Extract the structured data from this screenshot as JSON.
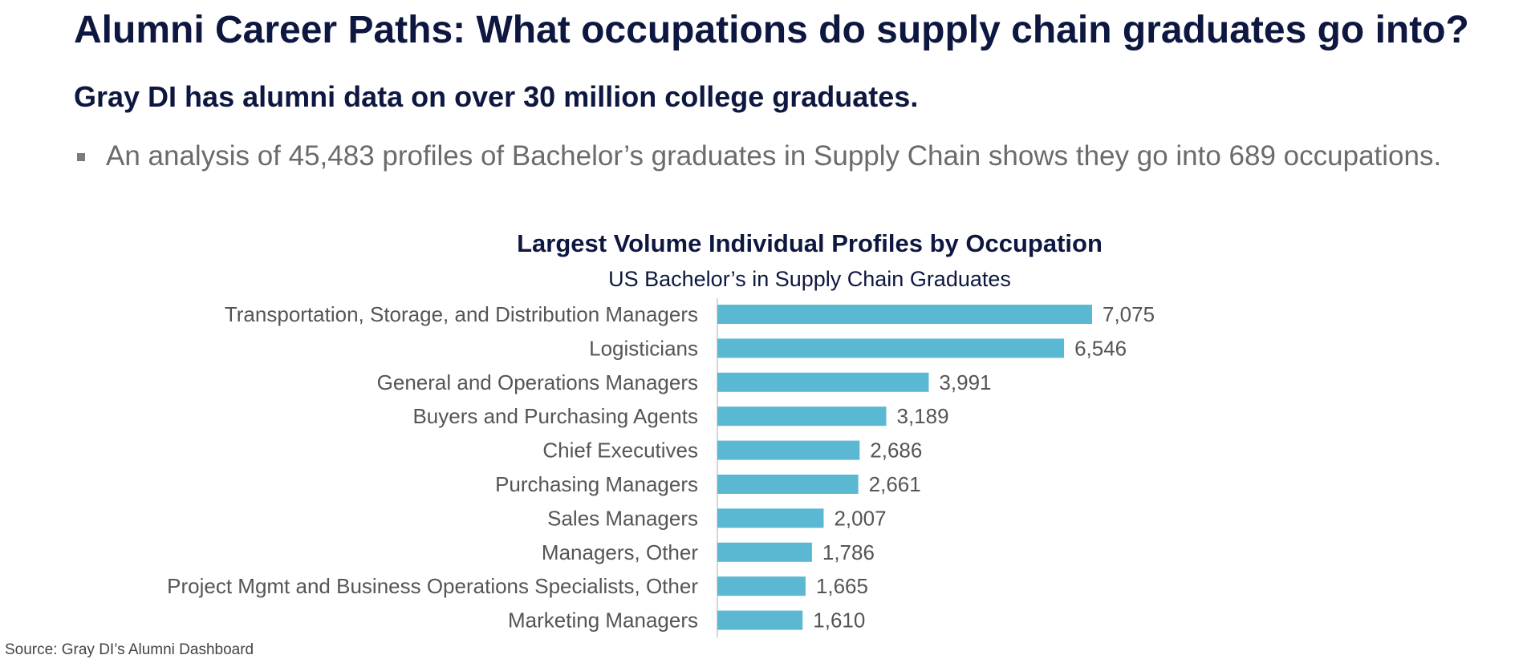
{
  "header": {
    "title": "Alumni Career Paths:  What occupations do supply chain graduates go into?",
    "subtitle": "Gray DI has alumni data on over 30 million college graduates.",
    "bullet": "An analysis of 45,483 profiles of Bachelor’s graduates in Supply Chain shows they go into 689 occupations."
  },
  "source": "Source:  Gray DI’s Alumni Dashboard",
  "colors": {
    "bar": "#5bb8d3",
    "title": "#0d1740",
    "label": "#555555"
  },
  "chart_data": {
    "type": "bar",
    "orientation": "horizontal",
    "title": "Largest Volume Individual Profiles by Occupation",
    "subtitle": "US Bachelor’s in Supply Chain Graduates",
    "categories": [
      "Transportation, Storage, and Distribution Managers",
      "Logisticians",
      "General and Operations Managers",
      "Buyers and Purchasing Agents",
      "Chief Executives",
      "Purchasing Managers",
      "Sales Managers",
      "Managers, Other",
      "Project Mgmt and Business Operations Specialists, Other",
      "Marketing Managers"
    ],
    "values": [
      7075,
      6546,
      3991,
      3189,
      2686,
      2661,
      2007,
      1786,
      1665,
      1610
    ],
    "value_labels": [
      "7,075",
      "6,546",
      "3,991",
      "3,189",
      "2,686",
      "2,661",
      "2,007",
      "1,786",
      "1,665",
      "1,610"
    ],
    "xlim": [
      0,
      7075
    ],
    "grid": false,
    "legend": "none"
  }
}
